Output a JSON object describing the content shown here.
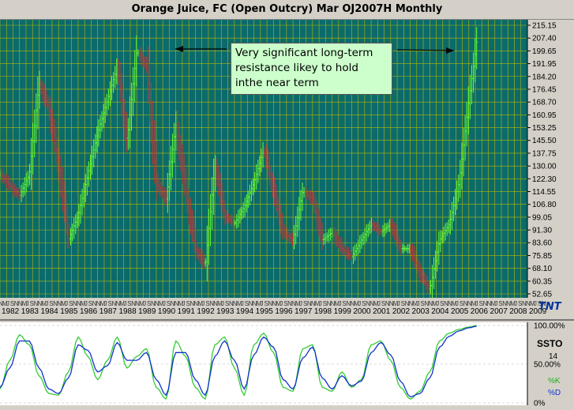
{
  "title": "Orange Juice, FC (Open Outcry) Mar OJ2007H Monthly",
  "annotation": {
    "lines": [
      "Very significant long-term",
      "resistance likey to hold",
      "inthe near term"
    ]
  },
  "logo": "TNT",
  "indicator": {
    "name": "SSTO",
    "period": "14",
    "k_label": "%K",
    "d_label": "%D",
    "levels": [
      "100.00%",
      "50.00%",
      "0%"
    ]
  },
  "colors": {
    "plot_bg": "#0b6b6b",
    "grid": "#b8b800",
    "up_bar": "#66ff33",
    "down_bar": "#cc3333",
    "k_line": "#33cc33",
    "d_line": "#1133cc",
    "arrow": "#000000",
    "annotation_bg": "#ccffcc"
  },
  "chart_data": [
    {
      "type": "ohlc",
      "title": "Orange Juice, FC (Open Outcry) Mar OJ2007H Monthly",
      "x_range": [
        1982,
        2009
      ],
      "ylim": [
        52.65,
        215.15
      ],
      "y_ticks": [
        "215.15",
        "207.40",
        "199.65",
        "191.95",
        "184.20",
        "176.45",
        "168.70",
        "160.95",
        "153.25",
        "145.50",
        "137.75",
        "130.00",
        "122.30",
        "114.55",
        "106.80",
        "99.05",
        "91.30",
        "83.60",
        "75.85",
        "68.10",
        "60.35",
        "52.65"
      ],
      "x_years": [
        "1982",
        "1983",
        "1984",
        "1985",
        "1986",
        "1987",
        "1988",
        "1989",
        "1990",
        "1991",
        "1992",
        "1993",
        "1994",
        "1995",
        "1996",
        "1997",
        "1998",
        "1999",
        "2000",
        "2001",
        "2002",
        "2003",
        "2004",
        "2005",
        "2006",
        "2007",
        "2008",
        "2009"
      ],
      "month_letters": "NMJSN",
      "grid": true,
      "series": [
        {
          "x": [
            1982.0,
            1982.5,
            1983.0,
            1983.5,
            1984.0,
            1984.5,
            1985.0,
            1985.5,
            1986.0,
            1986.5,
            1987.0,
            1987.5,
            1988.0,
            1988.5,
            1989.0,
            1989.5,
            1990.0,
            1990.5,
            1991.0,
            1991.5,
            1992.0,
            1992.5,
            1993.0,
            1993.5,
            1994.0,
            1994.5,
            1995.0,
            1995.5,
            1996.0,
            1996.5,
            1997.0,
            1997.5,
            1998.0,
            1998.5,
            1999.0,
            1999.5,
            2000.0,
            2000.5,
            2001.0,
            2001.5,
            2002.0,
            2002.5,
            2003.0,
            2003.5,
            2004.0,
            2004.5,
            2005.0,
            2005.5,
            2006.0,
            2006.4
          ],
          "close": [
            125,
            118,
            112,
            125,
            180,
            165,
            130,
            85,
            100,
            125,
            150,
            170,
            190,
            145,
            200,
            190,
            120,
            110,
            155,
            115,
            80,
            70,
            130,
            100,
            95,
            105,
            120,
            140,
            115,
            90,
            85,
            115,
            110,
            85,
            90,
            80,
            75,
            85,
            95,
            90,
            95,
            80,
            80,
            65,
            55,
            85,
            95,
            120,
            170,
            205
          ]
        }
      ]
    },
    {
      "type": "line",
      "title": "SSTO",
      "ylim": [
        0,
        100
      ],
      "y_ticks": [
        "100.00%",
        "50.00%",
        "0%"
      ],
      "series": [
        {
          "name": "%K",
          "x": [
            1982.0,
            1982.5,
            1983.0,
            1983.5,
            1984.0,
            1984.5,
            1985.0,
            1985.5,
            1986.0,
            1986.5,
            1987.0,
            1987.5,
            1988.0,
            1988.5,
            1989.0,
            1989.5,
            1990.0,
            1990.5,
            1991.0,
            1991.5,
            1992.0,
            1992.5,
            1993.0,
            1993.5,
            1994.0,
            1994.5,
            1995.0,
            1995.5,
            1996.0,
            1996.5,
            1997.0,
            1997.5,
            1998.0,
            1998.5,
            1999.0,
            1999.5,
            2000.0,
            2000.5,
            2001.0,
            2001.5,
            2002.0,
            2002.5,
            2003.0,
            2003.5,
            2004.0,
            2004.5,
            2005.0,
            2005.5,
            2006.0,
            2006.4
          ],
          "values": [
            18,
            55,
            88,
            75,
            35,
            12,
            10,
            40,
            85,
            60,
            30,
            55,
            85,
            45,
            60,
            70,
            20,
            5,
            80,
            60,
            20,
            5,
            75,
            85,
            45,
            10,
            75,
            90,
            65,
            20,
            15,
            70,
            75,
            20,
            15,
            40,
            20,
            30,
            75,
            80,
            55,
            20,
            5,
            15,
            40,
            80,
            90,
            95,
            98,
            100
          ]
        },
        {
          "name": "%D",
          "x": [
            1982.0,
            1982.5,
            1983.0,
            1983.5,
            1984.0,
            1984.5,
            1985.0,
            1985.5,
            1986.0,
            1986.5,
            1987.0,
            1987.5,
            1988.0,
            1988.5,
            1989.0,
            1989.5,
            1990.0,
            1990.5,
            1991.0,
            1991.5,
            1992.0,
            1992.5,
            1993.0,
            1993.5,
            1994.0,
            1994.5,
            1995.0,
            1995.5,
            1996.0,
            1996.5,
            1997.0,
            1997.5,
            1998.0,
            1998.5,
            1999.0,
            1999.5,
            2000.0,
            2000.5,
            2001.0,
            2001.5,
            2002.0,
            2002.5,
            2003.0,
            2003.5,
            2004.0,
            2004.5,
            2005.0,
            2005.5,
            2006.0,
            2006.4
          ],
          "values": [
            20,
            45,
            80,
            80,
            45,
            18,
            12,
            32,
            75,
            68,
            40,
            48,
            78,
            55,
            55,
            65,
            30,
            10,
            65,
            65,
            30,
            10,
            60,
            80,
            55,
            18,
            62,
            85,
            72,
            30,
            18,
            58,
            72,
            32,
            18,
            35,
            22,
            28,
            65,
            78,
            62,
            28,
            8,
            12,
            32,
            72,
            86,
            93,
            97,
            99
          ]
        }
      ]
    }
  ]
}
